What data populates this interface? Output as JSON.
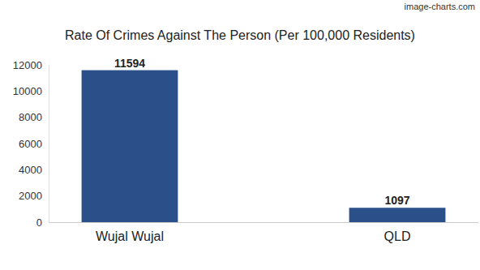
{
  "chart_data": {
    "type": "bar",
    "title": "Rate Of Crimes Against The Person (Per 100,000 Residents)",
    "annotations": [
      "image-charts.com"
    ],
    "categories": [
      "Wujal Wujal",
      "QLD"
    ],
    "values": [
      11594,
      1097
    ],
    "color": "#2b5089",
    "ylim": [
      0,
      12000
    ],
    "yticks": [
      0,
      2000,
      4000,
      6000,
      8000,
      10000,
      12000
    ],
    "grid": false,
    "data_labels": true
  }
}
